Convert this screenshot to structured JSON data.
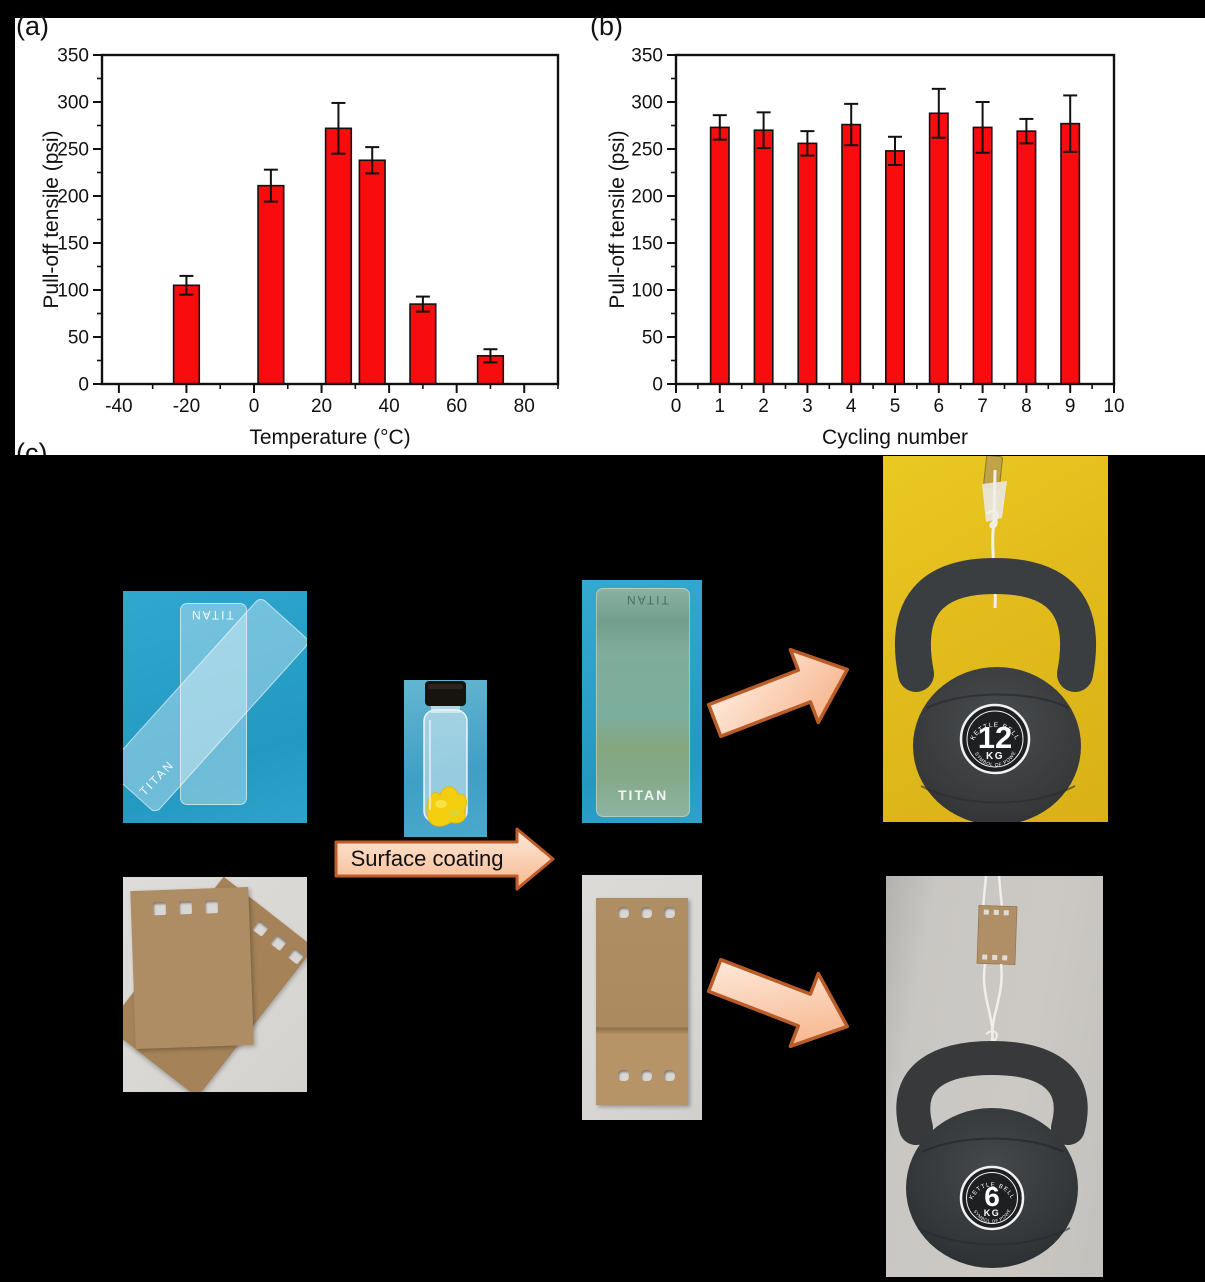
{
  "panels": {
    "a_label": "(a)",
    "b_label": "(b)",
    "c_label": "(c)"
  },
  "chart_data": [
    {
      "id": "a",
      "type": "bar",
      "title": "",
      "xlabel": "Temperature (°C)",
      "ylabel": "Pull-off tensile (psi)",
      "xlim": [
        -45,
        90
      ],
      "ylim": [
        0,
        350
      ],
      "x_ticks": [
        -40,
        -20,
        0,
        20,
        40,
        60,
        80
      ],
      "x_minor_step": 10,
      "y_ticks": [
        0,
        50,
        100,
        150,
        200,
        250,
        300,
        350
      ],
      "y_minor_step": 25,
      "grid": false,
      "legend": false,
      "bar_color": "#f80c0e",
      "bar_width_units": 7.6,
      "x": [
        -20,
        5,
        25,
        35,
        50,
        70
      ],
      "values": [
        105,
        211,
        272,
        238,
        85,
        30
      ],
      "errors": [
        10,
        17,
        27,
        14,
        8,
        7
      ]
    },
    {
      "id": "b",
      "type": "bar",
      "title": "",
      "xlabel": "Cycling number",
      "ylabel": "Pull-off tensile (psi)",
      "xlim": [
        0,
        10
      ],
      "ylim": [
        0,
        350
      ],
      "x_ticks": [
        0,
        1,
        2,
        3,
        4,
        5,
        6,
        7,
        8,
        9,
        10
      ],
      "x_minor_step": 0.5,
      "y_ticks": [
        0,
        50,
        100,
        150,
        200,
        250,
        300,
        350
      ],
      "y_minor_step": 25,
      "grid": false,
      "legend": false,
      "bar_color": "#f80c0e",
      "bar_width_units": 0.42,
      "x": [
        1,
        2,
        3,
        4,
        5,
        6,
        7,
        8,
        9
      ],
      "values": [
        273,
        270,
        256,
        276,
        248,
        288,
        273,
        269,
        277
      ],
      "errors": [
        13,
        19,
        13,
        22,
        15,
        26,
        27,
        13,
        30
      ]
    }
  ],
  "process": {
    "arrow_label": "Surface coating",
    "slide_brand": "TITAN",
    "kettlebell_12": {
      "brand": "KETTLE BELL",
      "weight": "12",
      "unit": "KG",
      "slogan": "A SYMBOL OF POWER"
    },
    "kettlebell_6": {
      "brand": "KETTLE BELL",
      "weight": "6",
      "unit": "KG",
      "slogan": "A SYMBOL OF POWER"
    }
  },
  "colors": {
    "figure_bg": "#000000",
    "panel_bg": "#ffffff",
    "bar_fill": "#f80c0e",
    "axis": "#111111",
    "arrow_fill_light": "#fdeadb",
    "arrow_fill": "#f8b88e",
    "arrow_border": "#be5b28",
    "photo_blue_bg": "#2fa7cf",
    "coated_slide_green": "#7fac9b",
    "cardboard": "#ae8c63",
    "photo_gray_bg": "#d9d7d3",
    "kb_yellow_bg": "#e2bb1c",
    "kb_gray_bg": "#c9c7c3",
    "kettlebell_dark": "#35383a",
    "vial_yellow": "#f2ce0e"
  }
}
